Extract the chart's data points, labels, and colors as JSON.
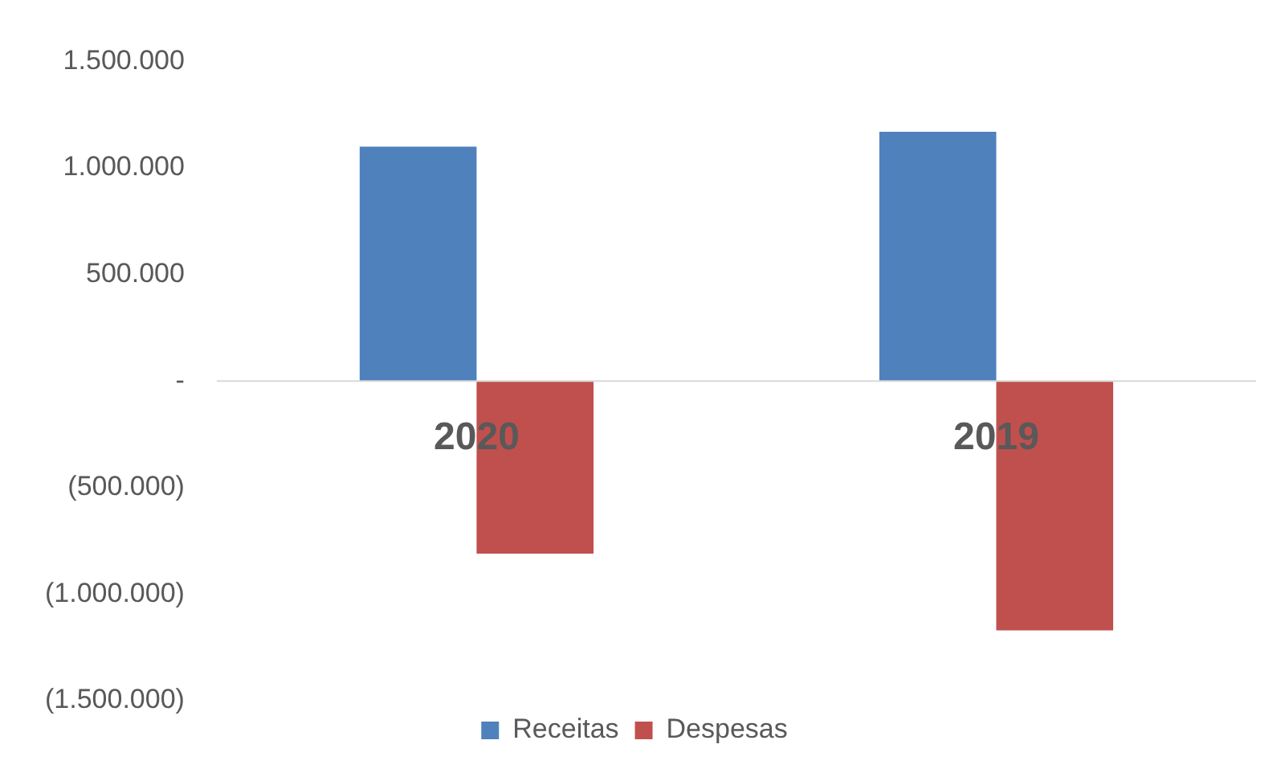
{
  "chart_data": {
    "type": "bar",
    "categories": [
      "2020",
      "2019"
    ],
    "series": [
      {
        "name": "Receitas",
        "color": "#4f81bd",
        "values": [
          1100000,
          1170000
        ]
      },
      {
        "name": "Despesas",
        "color": "#c0504d",
        "values": [
          -810000,
          -1170000
        ]
      }
    ],
    "ylim": [
      -1500000,
      1500000
    ],
    "yticks": [
      {
        "value": -1500000,
        "label": "(1.500.000)"
      },
      {
        "value": -1000000,
        "label": "(1.000.000)"
      },
      {
        "value": -500000,
        "label": "(500.000)"
      },
      {
        "value": 0,
        "label": "-"
      },
      {
        "value": 500000,
        "label": "500.000"
      },
      {
        "value": 1000000,
        "label": "1.000.000"
      },
      {
        "value": 1500000,
        "label": "1.500.000"
      }
    ],
    "grid": false,
    "legend": "bottom"
  }
}
